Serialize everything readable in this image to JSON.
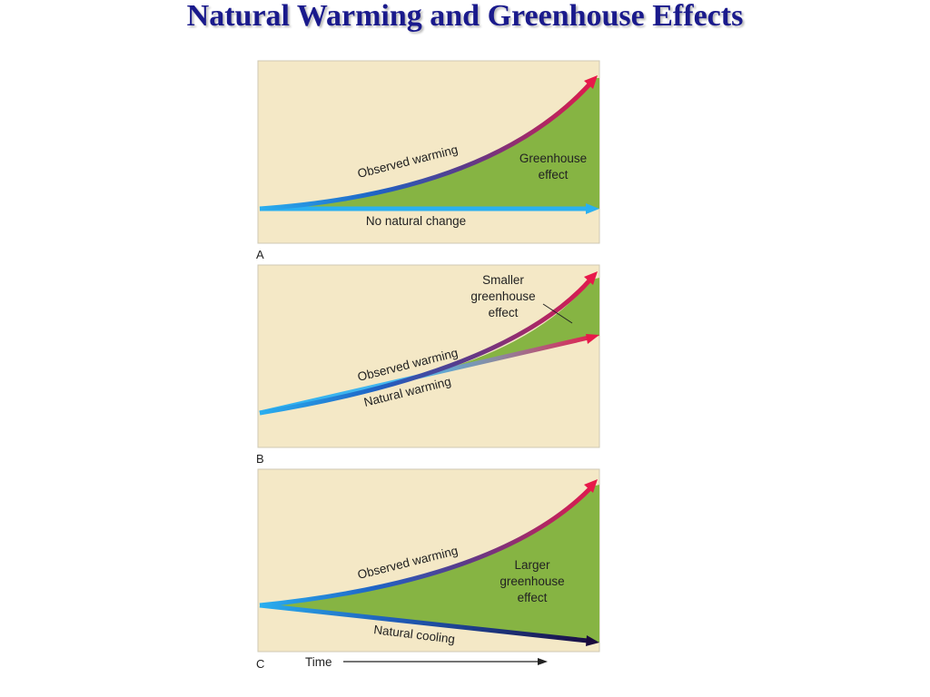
{
  "title": "Natural Warming and Greenhouse Effects",
  "colors": {
    "panel_background": "#f4e8c6",
    "greenhouse_fill": "#86b443",
    "arrow_start": "#2ab0f0",
    "arrow_end": "#e8194a",
    "cooling_end": "#1a0a3c"
  },
  "panels": [
    {
      "letter": "A",
      "observed_label": "Observed warming",
      "baseline_label": "No natural change",
      "region_label_lines": [
        "Greenhouse",
        "effect"
      ]
    },
    {
      "letter": "B",
      "observed_label": "Observed warming",
      "baseline_label": "Natural warming",
      "region_label_lines": [
        "Smaller",
        "greenhouse",
        "effect"
      ]
    },
    {
      "letter": "C",
      "observed_label": "Observed warming",
      "baseline_label": "Natural cooling",
      "region_label_lines": [
        "Larger",
        "greenhouse",
        "effect"
      ]
    }
  ],
  "time_axis_label": "Time"
}
